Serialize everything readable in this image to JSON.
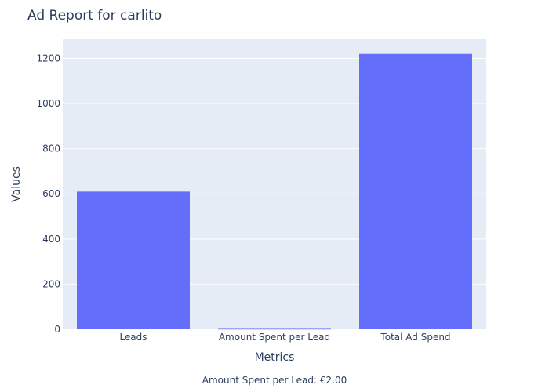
{
  "chart_data": {
    "type": "bar",
    "title": "Ad Report for carlito",
    "xlabel": "Metrics",
    "ylabel": "Values",
    "categories": [
      "Leads",
      "Amount Spent per Lead",
      "Total Ad Spend"
    ],
    "values": [
      610,
      2,
      1220
    ],
    "ylim": [
      0,
      1285
    ],
    "yticks": [
      0,
      200,
      400,
      600,
      800,
      1000,
      1200
    ],
    "grid": true,
    "annotation": "Amount Spent per Lead: €2.00",
    "colors": {
      "bar": "#636efa",
      "plot_background": "#e5ecf6",
      "grid": "#ffffff",
      "text": "#2a3f5f"
    }
  }
}
